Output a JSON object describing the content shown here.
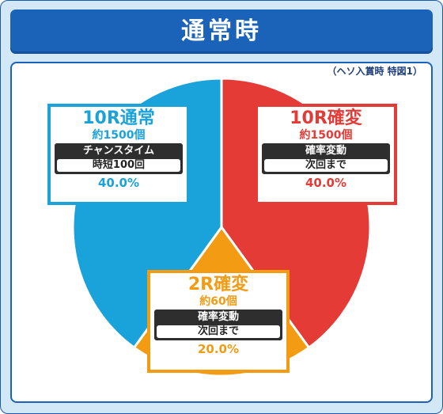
{
  "header": {
    "title": "通常時"
  },
  "note": "（ヘソ入賞時 特図1）",
  "colors": {
    "blue": "#19a3da",
    "red": "#e53b37",
    "orange": "#f29b13",
    "header": "#1a63b8"
  },
  "chart_data": {
    "type": "pie",
    "slices": [
      {
        "name": "10R通常",
        "count": "約1500個",
        "label_top": "チャンスタイム",
        "label_bottom": "時短100回",
        "percent_text": "40.0%",
        "value": 40.0,
        "color": "#19a3da"
      },
      {
        "name": "10R確変",
        "count": "約1500個",
        "label_top": "確率変動",
        "label_bottom": "次回まで",
        "percent_text": "40.0%",
        "value": 40.0,
        "color": "#e53b37"
      },
      {
        "name": "2R確変",
        "count": "約60個",
        "label_top": "確率変動",
        "label_bottom": "次回まで",
        "percent_text": "20.0%",
        "value": 20.0,
        "color": "#f29b13"
      }
    ]
  }
}
